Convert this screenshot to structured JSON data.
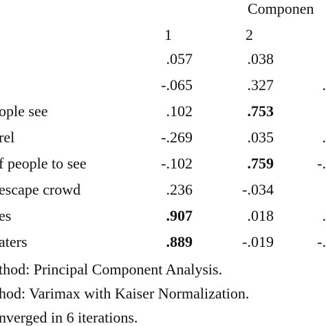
{
  "table": {
    "header": "Componen",
    "columns": [
      "1",
      "2",
      ""
    ],
    "rows": [
      {
        "label": "",
        "c1": ".057",
        "c2": ".038",
        "c3": "",
        "bold": []
      },
      {
        "label": "",
        "c1": "-.065",
        "c2": ".327",
        "c3": ".",
        "bold": []
      },
      {
        "label": "ople see",
        "c1": ".102",
        "c2": ".753",
        "c3": "",
        "bold": [
          "c2"
        ]
      },
      {
        "label": "rel",
        "c1": "-.269",
        "c2": ".035",
        "c3": ".",
        "bold": []
      },
      {
        "label": "f people to see",
        "c1": "-.102",
        "c2": ".759",
        "c3": "-.",
        "bold": [
          "c2"
        ]
      },
      {
        "label": "escape crowd",
        "c1": ".236",
        "c2": "-.034",
        "c3": "",
        "bold": [
          "c3"
        ]
      },
      {
        "label": "es",
        "c1": ".907",
        "c2": ".018",
        "c3": ".",
        "bold": [
          "c1"
        ]
      },
      {
        "label": "aters",
        "c1": ".889",
        "c2": "-.019",
        "c3": "-.",
        "bold": [
          "c1"
        ]
      }
    ]
  },
  "footnotes": [
    "thod: Principal Component Analysis.",
    "hod: Varimax with Kaiser Normalization.",
    "nverged in 6 iterations."
  ]
}
